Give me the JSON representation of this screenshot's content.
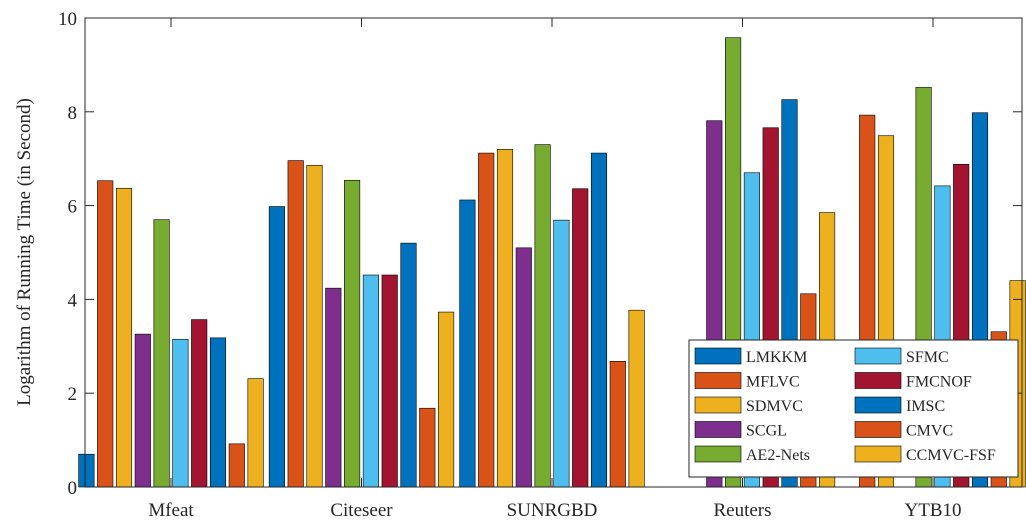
{
  "chart_data": {
    "type": "bar",
    "title": "",
    "xlabel": "",
    "ylabel": "Logarithm of Running Time (in Second)",
    "ylim": [
      0,
      10
    ],
    "yticks": [
      "0",
      "2",
      "4",
      "6",
      "8",
      "10"
    ],
    "categories": [
      "Mfeat",
      "Citeseer",
      "SUNRGBD",
      "Reuters",
      "YTB10"
    ],
    "grid": false,
    "legend_position": "bottom-right",
    "legend_columns": 2,
    "series": [
      {
        "name": "LMKKM",
        "color": "#0072BD",
        "values": [
          0.7,
          5.98,
          6.12,
          0.0,
          0.0
        ]
      },
      {
        "name": "MFLVC",
        "color": "#D95319",
        "values": [
          6.53,
          6.96,
          7.12,
          0.0,
          7.93
        ]
      },
      {
        "name": "SDMVC",
        "color": "#EDB120",
        "values": [
          6.37,
          6.86,
          7.2,
          0.0,
          7.49
        ]
      },
      {
        "name": "SCGL",
        "color": "#7E2F8E",
        "values": [
          3.26,
          4.24,
          5.1,
          7.81,
          0.0
        ]
      },
      {
        "name": "AE2-Nets",
        "color": "#77AC30",
        "values": [
          5.7,
          6.54,
          7.3,
          9.58,
          8.52
        ]
      },
      {
        "name": "SFMC",
        "color": "#4DBEEE",
        "values": [
          3.15,
          4.52,
          5.69,
          6.7,
          6.42
        ]
      },
      {
        "name": "FMCNOF",
        "color": "#A2142F",
        "values": [
          3.57,
          4.52,
          6.36,
          7.66,
          6.88
        ]
      },
      {
        "name": "IMSC",
        "color": "#0072BD",
        "values": [
          3.18,
          5.2,
          7.12,
          8.26,
          7.98
        ]
      },
      {
        "name": "CMVC",
        "color": "#D95319",
        "values": [
          0.92,
          1.68,
          2.68,
          4.12,
          3.31
        ]
      },
      {
        "name": "CCMVC-FSF",
        "color": "#EDB120",
        "values": [
          2.31,
          3.73,
          3.77,
          5.85,
          4.4
        ]
      }
    ],
    "legend_order": [
      0,
      5,
      1,
      6,
      2,
      7,
      3,
      8,
      4,
      9
    ]
  }
}
